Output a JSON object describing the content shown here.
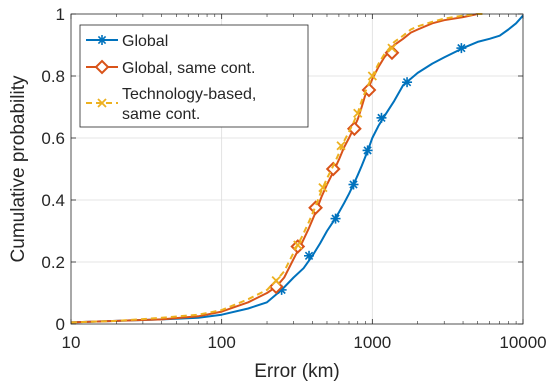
{
  "chart_data": {
    "type": "line",
    "title": "",
    "xlabel": "Error (km)",
    "ylabel": "Cumulative probability",
    "xscale": "log",
    "xlim": [
      10,
      10000
    ],
    "ylim": [
      0,
      1
    ],
    "x_ticks": [
      10,
      100,
      1000,
      10000
    ],
    "x_tick_labels": [
      "10",
      "100",
      "1000",
      "10000"
    ],
    "y_ticks": [
      0,
      0.2,
      0.4,
      0.6,
      0.8,
      1
    ],
    "y_tick_labels": [
      "0",
      "0.2",
      "0.4",
      "0.6",
      "0.8",
      "1"
    ],
    "grid": true,
    "legend_position": "top-left",
    "series": [
      {
        "name": "Global",
        "color": "#0072BD",
        "marker": "asterisk",
        "line_style": "solid",
        "x": [
          10,
          20,
          40,
          70,
          100,
          150,
          200,
          250,
          300,
          350,
          400,
          450,
          500,
          550,
          600,
          650,
          700,
          750,
          800,
          850,
          900,
          950,
          1000,
          1100,
          1200,
          1400,
          1600,
          2000,
          2500,
          3000,
          4000,
          5000,
          6000,
          7000,
          8000,
          9000,
          10000
        ],
        "y": [
          0.005,
          0.01,
          0.015,
          0.02,
          0.03,
          0.05,
          0.07,
          0.11,
          0.15,
          0.18,
          0.22,
          0.26,
          0.3,
          0.33,
          0.36,
          0.39,
          0.42,
          0.45,
          0.48,
          0.51,
          0.54,
          0.57,
          0.6,
          0.64,
          0.67,
          0.72,
          0.77,
          0.81,
          0.84,
          0.86,
          0.89,
          0.91,
          0.92,
          0.93,
          0.95,
          0.97,
          0.995
        ],
        "marker_x": [
          250,
          380,
          570,
          750,
          930,
          1150,
          1700,
          3900
        ],
        "marker_y": [
          0.11,
          0.22,
          0.34,
          0.45,
          0.56,
          0.665,
          0.78,
          0.89
        ]
      },
      {
        "name": "Global, same cont.",
        "color": "#D95319",
        "marker": "diamond",
        "line_style": "solid",
        "x": [
          10,
          20,
          40,
          70,
          100,
          150,
          200,
          230,
          260,
          300,
          340,
          380,
          420,
          460,
          500,
          550,
          600,
          650,
          700,
          750,
          800,
          850,
          900,
          1000,
          1100,
          1200,
          1300,
          1400,
          1600,
          1800,
          2000,
          2500,
          3000,
          4000,
          5000
        ],
        "y": [
          0.005,
          0.01,
          0.015,
          0.025,
          0.04,
          0.07,
          0.1,
          0.12,
          0.15,
          0.21,
          0.26,
          0.31,
          0.36,
          0.41,
          0.45,
          0.49,
          0.53,
          0.57,
          0.6,
          0.63,
          0.66,
          0.7,
          0.74,
          0.79,
          0.83,
          0.86,
          0.88,
          0.9,
          0.92,
          0.94,
          0.95,
          0.97,
          0.98,
          0.99,
          1
        ],
        "marker_x": [
          230,
          320,
          420,
          550,
          760,
          950,
          1350
        ],
        "marker_y": [
          0.12,
          0.25,
          0.375,
          0.5,
          0.63,
          0.755,
          0.875
        ]
      },
      {
        "name": "Technology-based, same cont.",
        "color": "#EDB120",
        "marker": "x",
        "line_style": "dashed",
        "x": [
          10,
          20,
          40,
          70,
          100,
          150,
          200,
          230,
          260,
          300,
          340,
          380,
          420,
          460,
          500,
          550,
          600,
          650,
          700,
          750,
          800,
          850,
          900,
          1000,
          1100,
          1200,
          1300,
          1400,
          1600,
          1800,
          2000,
          2500,
          3000,
          4000,
          5000,
          5500
        ],
        "y": [
          0.005,
          0.01,
          0.02,
          0.03,
          0.045,
          0.08,
          0.11,
          0.14,
          0.17,
          0.23,
          0.28,
          0.33,
          0.38,
          0.43,
          0.47,
          0.51,
          0.55,
          0.59,
          0.62,
          0.65,
          0.68,
          0.72,
          0.75,
          0.8,
          0.84,
          0.87,
          0.89,
          0.91,
          0.93,
          0.95,
          0.96,
          0.975,
          0.985,
          0.995,
          1,
          1
        ],
        "marker_x": [
          230,
          320,
          470,
          620,
          800,
          1000,
          1350
        ],
        "marker_y": [
          0.14,
          0.255,
          0.44,
          0.575,
          0.68,
          0.8,
          0.89
        ]
      }
    ]
  }
}
